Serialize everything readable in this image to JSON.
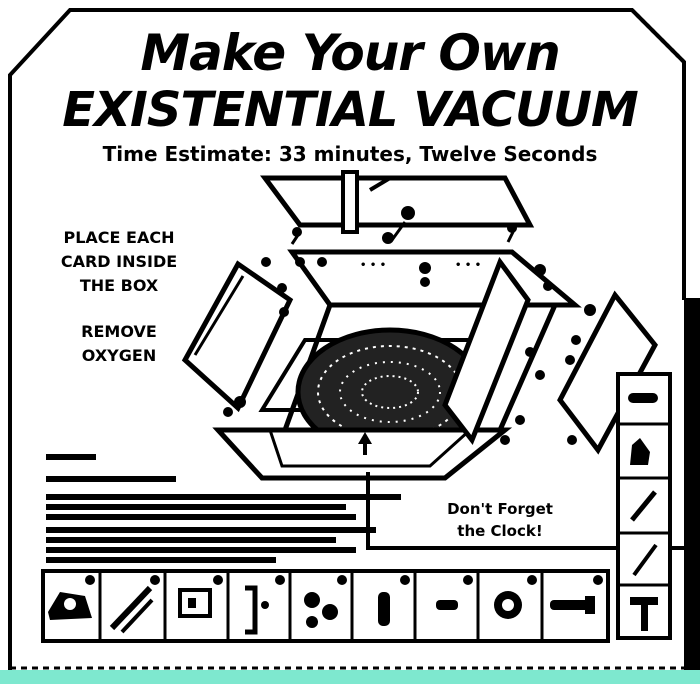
{
  "title": {
    "line1": "Make Your Own",
    "line2": "EXISTENTIAL VACUUM"
  },
  "subtitle": "Time Estimate: 33 minutes, Twelve Seconds",
  "instructions": {
    "step1": [
      "PLACE EACH",
      "CARD INSIDE",
      "THE BOX"
    ],
    "step2": [
      "REMOVE",
      "OXYGEN"
    ]
  },
  "callout": [
    "Don't Forget",
    "the Clock!"
  ],
  "colors": {
    "ink": "#000000",
    "paper": "#ffffff",
    "band": "#7ee8cf"
  },
  "icons": {
    "tool_strip": [
      "tape-dispenser-icon",
      "pliers-icon",
      "cabinet-hinge-icon",
      "bracket-icon",
      "caster-wheel-icon",
      "screw-anchor-icon",
      "dowel-icon",
      "tape-roll-icon",
      "bolt-icon"
    ],
    "side_tools": [
      "cord-icon",
      "hand-icon",
      "screwdriver-icon",
      "rod-icon",
      "hammer-icon"
    ]
  }
}
